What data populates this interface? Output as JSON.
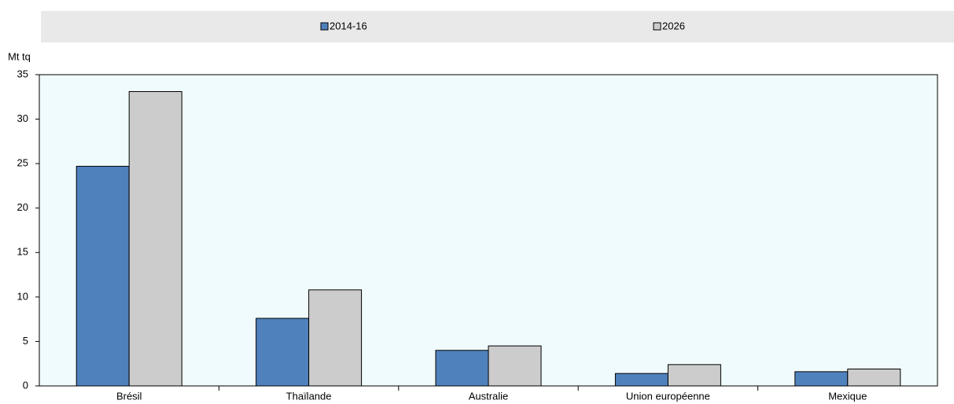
{
  "chart_data": {
    "type": "bar",
    "y_label": "Mt tq",
    "categories": [
      "Brésil",
      "Thaïlande",
      "Australie",
      "Union européenne",
      "Mexique"
    ],
    "series": [
      {
        "name": "2014-16",
        "color": "#4f81bd",
        "values": [
          24.7,
          7.6,
          4.0,
          1.4,
          1.6
        ]
      },
      {
        "name": "2026",
        "color": "#cccccc",
        "values": [
          33.1,
          10.8,
          4.5,
          2.4,
          1.9
        ]
      }
    ],
    "ylim": [
      0,
      35
    ],
    "yticks": [
      0,
      5,
      10,
      15,
      20,
      25,
      30,
      35
    ],
    "grid": false,
    "legend": "top"
  }
}
